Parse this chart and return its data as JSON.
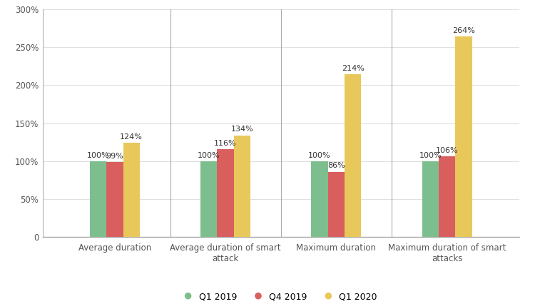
{
  "categories": [
    "Average duration",
    "Average duration of smart\nattack",
    "Maximum duration",
    "Maximum duration of smart\nattacks"
  ],
  "series": {
    "Q1 2019": [
      100,
      100,
      100,
      100
    ],
    "Q4 2019": [
      99,
      116,
      86,
      106
    ],
    "Q1 2020": [
      124,
      134,
      214,
      264
    ]
  },
  "colors": {
    "Q1 2019": "#7dbe8e",
    "Q4 2019": "#d95f5f",
    "Q1 2020": "#e8c85a"
  },
  "ylim": [
    0,
    300
  ],
  "yticks": [
    0,
    50,
    100,
    150,
    200,
    250,
    300
  ],
  "ytick_labels": [
    "0",
    "50%",
    "100%",
    "150%",
    "200%",
    "250%",
    "300%"
  ],
  "bar_width": 0.15,
  "background_color": "#ffffff",
  "grid_color": "#e0e0e0",
  "label_fontsize": 8,
  "tick_fontsize": 8.5,
  "legend_fontsize": 9
}
